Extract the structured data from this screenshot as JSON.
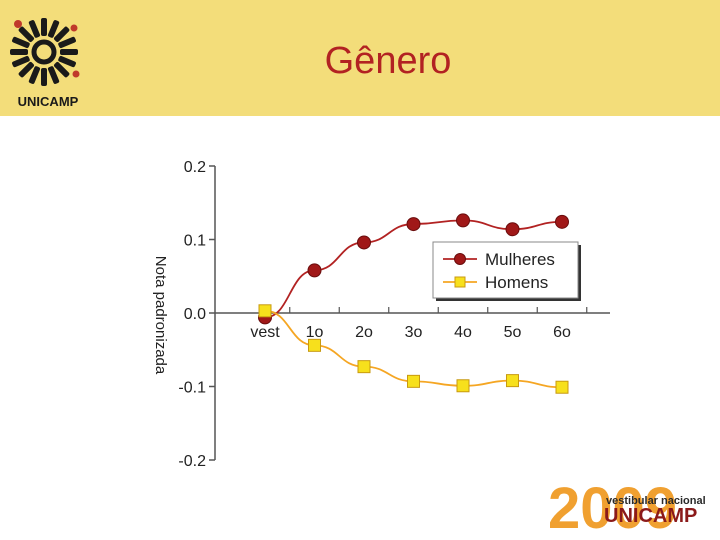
{
  "header": {
    "title": "Gênero",
    "logo_text": "UNICAMP",
    "bg_color": "#f3dd7a",
    "title_color": "#b22222"
  },
  "brand": {
    "year": "2009",
    "tagline": "vestibular nacional",
    "name": "UNICAMP"
  },
  "chart_data": {
    "type": "line",
    "categories": [
      "vest",
      "1o",
      "2o",
      "3o",
      "4o",
      "5o",
      "6o"
    ],
    "ylim": [
      -0.2,
      0.2
    ],
    "yticks": [
      "0.2",
      "0.1",
      "0.0",
      "-0.1",
      "-0.2"
    ],
    "ytick_values": [
      0.2,
      0.1,
      0.0,
      -0.1,
      -0.2
    ],
    "ylabel": "Nota padronizada",
    "legend_position": "right",
    "series": [
      {
        "name": "Mulheres",
        "color": "#b22222",
        "marker": "circle",
        "values": [
          -0.006,
          0.058,
          0.096,
          0.121,
          0.126,
          0.114,
          0.124
        ]
      },
      {
        "name": "Homens",
        "color": "#f5a623",
        "marker": "square",
        "values": [
          0.003,
          -0.044,
          -0.073,
          -0.093,
          -0.099,
          -0.092,
          -0.101
        ]
      }
    ]
  }
}
